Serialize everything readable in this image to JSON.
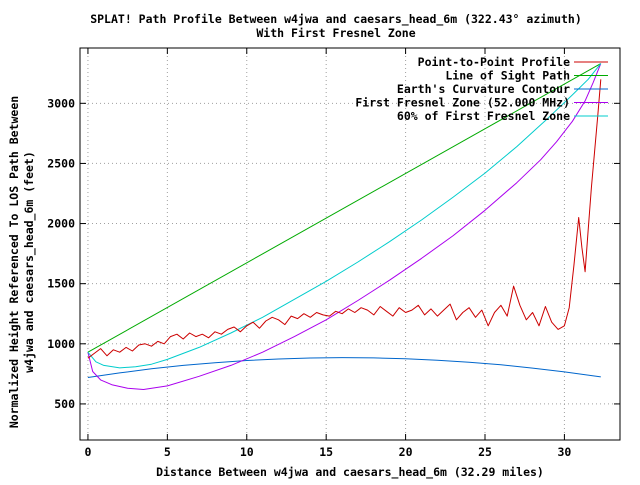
{
  "chart_data": {
    "type": "line",
    "title": "SPLAT! Path Profile Between w4jwa and caesars_head_6m (322.43° azimuth)",
    "subtitle": "With First Fresnel Zone",
    "xlabel": "Distance Between w4jwa and caesars_head_6m (32.29 miles)",
    "ylabel_line1": "Normalized Height Referenced To LOS Path Between",
    "ylabel_line2": "w4jwa and caesars_head_6m (feet)",
    "xlim": [
      -0.5,
      33.5
    ],
    "ylim": [
      200,
      3460
    ],
    "x_ticks": [
      0,
      5,
      10,
      15,
      20,
      25,
      30
    ],
    "y_ticks": [
      500,
      1000,
      1500,
      2000,
      2500,
      3000
    ],
    "grid": true,
    "legend_position": "top-right",
    "distance_total": 32.29,
    "series": [
      {
        "name": "Point-to-Point Profile",
        "color": "#cc0000",
        "x": [
          0,
          0.4,
          0.8,
          1.2,
          1.6,
          2.0,
          2.4,
          2.8,
          3.2,
          3.6,
          4.0,
          4.4,
          4.8,
          5.2,
          5.6,
          6.0,
          6.4,
          6.8,
          7.2,
          7.6,
          8.0,
          8.4,
          8.8,
          9.2,
          9.6,
          10.0,
          10.4,
          10.8,
          11.2,
          11.6,
          12.0,
          12.4,
          12.8,
          13.2,
          13.6,
          14.0,
          14.4,
          14.8,
          15.2,
          15.6,
          16.0,
          16.4,
          16.8,
          17.2,
          17.6,
          18.0,
          18.4,
          18.8,
          19.2,
          19.6,
          20.0,
          20.4,
          20.8,
          21.2,
          21.6,
          22.0,
          22.4,
          22.8,
          23.2,
          23.6,
          24.0,
          24.4,
          24.8,
          25.2,
          25.6,
          26.0,
          26.4,
          26.8,
          27.2,
          27.6,
          28.0,
          28.4,
          28.8,
          29.2,
          29.6,
          30.0,
          30.3,
          30.6,
          30.9,
          31.1,
          31.3,
          31.5,
          31.7,
          31.9,
          32.1,
          32.29
        ],
        "y": [
          880,
          920,
          960,
          900,
          950,
          930,
          970,
          940,
          990,
          1000,
          980,
          1020,
          1000,
          1060,
          1080,
          1040,
          1090,
          1060,
          1080,
          1050,
          1100,
          1080,
          1120,
          1140,
          1100,
          1150,
          1180,
          1130,
          1190,
          1220,
          1200,
          1160,
          1230,
          1210,
          1250,
          1220,
          1260,
          1240,
          1230,
          1270,
          1250,
          1290,
          1260,
          1300,
          1280,
          1240,
          1310,
          1270,
          1230,
          1300,
          1260,
          1280,
          1320,
          1240,
          1290,
          1230,
          1280,
          1330,
          1200,
          1260,
          1300,
          1220,
          1280,
          1150,
          1260,
          1320,
          1230,
          1480,
          1320,
          1200,
          1260,
          1150,
          1310,
          1180,
          1120,
          1150,
          1300,
          1650,
          2050,
          1800,
          1600,
          1950,
          2300,
          2600,
          2900,
          3200
        ]
      },
      {
        "name": "Line of Sight Path",
        "color": "#00aa00",
        "x": [
          0,
          32.29
        ],
        "y": [
          930,
          3330
        ]
      },
      {
        "name": "Earth's Curvature Contour",
        "color": "#0066cc",
        "x": [
          0,
          2,
          4,
          6,
          8,
          10,
          12,
          14,
          16,
          18,
          20,
          22,
          24,
          26,
          28,
          30,
          32.29
        ],
        "y": [
          720,
          758,
          792,
          820,
          843,
          861,
          874,
          882,
          885,
          883,
          876,
          864,
          847,
          825,
          798,
          766,
          725
        ]
      },
      {
        "name": "First Fresnel Zone (52.000 MHz)",
        "color": "#aa00ee",
        "x": [
          0,
          0.3,
          0.8,
          1.5,
          2.5,
          3.5,
          5,
          7,
          9,
          11,
          13,
          15,
          17,
          19,
          21,
          23,
          25,
          27,
          28.5,
          29.5,
          30.5,
          31.3,
          31.8,
          32.29
        ],
        "y": [
          930,
          770,
          700,
          660,
          630,
          620,
          650,
          730,
          820,
          930,
          1060,
          1200,
          1360,
          1530,
          1710,
          1900,
          2110,
          2340,
          2530,
          2680,
          2850,
          3020,
          3170,
          3330
        ]
      },
      {
        "name": "60% of First Fresnel Zone",
        "color": "#00cccc",
        "x": [
          0,
          0.5,
          1,
          2,
          3,
          4,
          5,
          7,
          9,
          11,
          13,
          15,
          17,
          19,
          21,
          23,
          25,
          27,
          29,
          30.5,
          31.5,
          32.29
        ],
        "y": [
          930,
          850,
          820,
          800,
          810,
          830,
          870,
          970,
          1090,
          1220,
          1370,
          1520,
          1680,
          1850,
          2030,
          2220,
          2420,
          2640,
          2880,
          3070,
          3200,
          3330
        ]
      }
    ]
  }
}
